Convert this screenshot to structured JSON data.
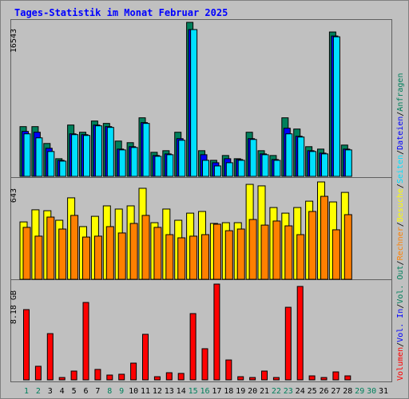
{
  "chart_data": {
    "type": "bar",
    "title": "Tages-Statistik im Monat Februar 2025",
    "categories": [
      1,
      2,
      3,
      4,
      5,
      6,
      7,
      8,
      9,
      10,
      11,
      12,
      13,
      14,
      15,
      16,
      17,
      18,
      19,
      20,
      21,
      22,
      23,
      24,
      25,
      26,
      27,
      28,
      29,
      30,
      31
    ],
    "category_colors": [
      "#00805c",
      "#00805c",
      "#000000",
      "#000000",
      "#000000",
      "#000000",
      "#000000",
      "#00805c",
      "#00805c",
      "#000000",
      "#000000",
      "#000000",
      "#000000",
      "#000000",
      "#00805c",
      "#00805c",
      "#000000",
      "#000000",
      "#000000",
      "#000000",
      "#000000",
      "#00805c",
      "#00805c",
      "#000000",
      "#000000",
      "#000000",
      "#000000",
      "#000000",
      "#00805c",
      "#00805c",
      "#000000"
    ],
    "legend_separator": "/",
    "panels": [
      {
        "ylim": [
          0,
          16543
        ],
        "yticks": [
          16543
        ],
        "series": [
          {
            "name": "Anfragen",
            "color": "#00805c",
            "values": [
              5342,
              5342,
              3533,
              1896,
              5514,
              4739,
              5945,
              5687,
              3791,
              3619,
              6290,
              2585,
              2757,
              4739,
              16543,
              2757,
              1723,
              2240,
              1896,
              4739,
              2757,
              2240,
              6290,
              5083,
              3188,
              2929,
              15509,
              3360,
              null,
              null,
              null
            ]
          },
          {
            "name": "Dateien",
            "color": "#0000ff",
            "values": [
              4825,
              4739,
              3016,
              1723,
              4566,
              4480,
              5514,
              5342,
              2929,
              3188,
              5773,
              2240,
              2412,
              4050,
              15767,
              2326,
              1465,
              1896,
              1809,
              4050,
              2412,
              1809,
              5170,
              4308,
              2757,
              2499,
              15078,
              2929,
              null,
              null,
              null
            ]
          },
          {
            "name": "Seiten",
            "color": "#00e0ff",
            "values": [
              4566,
              4136,
              2671,
              1637,
              4480,
              4394,
              5428,
              5256,
              2843,
              3102,
              5687,
              2154,
              2326,
              3877,
              15767,
              1723,
              1120,
              1465,
              1723,
              3963,
              2326,
              1723,
              4566,
              4222,
              2671,
              2412,
              14992,
              2843,
              null,
              null,
              null
            ]
          }
        ]
      },
      {
        "ylim": [
          0,
          643
        ],
        "yticks": [
          643
        ],
        "series": [
          {
            "name": "Besuche",
            "color": "#ffff00",
            "values": [
              379,
              459,
              453,
              390,
              538,
              348,
              416,
              485,
              464,
              485,
              601,
              374,
              464,
              390,
              437,
              448,
              369,
              374,
              374,
              627,
              617,
              474,
              437,
              474,
              516,
              643,
              511,
              574,
              null,
              null,
              null
            ]
          },
          {
            "name": "Rechner",
            "color": "#ff8000",
            "values": [
              343,
              285,
              411,
              332,
              422,
              279,
              285,
              348,
              306,
              369,
              422,
              343,
              295,
              274,
              285,
              295,
              364,
              321,
              332,
              395,
              358,
              385,
              353,
              295,
              448,
              548,
              327,
              427,
              null,
              null,
              null
            ]
          }
        ]
      },
      {
        "ylim": [
          0,
          8.18
        ],
        "yticks": [
          {
            "value": 8.18,
            "label": "8.18 GB"
          }
        ],
        "series": [
          {
            "name": "Vol. Out",
            "color": "#00805c",
            "values": [
              null,
              null,
              null,
              null,
              null,
              null,
              null,
              null,
              null,
              null,
              null,
              null,
              null,
              null,
              null,
              null,
              null,
              null,
              null,
              null,
              null,
              null,
              null,
              null,
              null,
              null,
              null,
              null,
              null,
              null,
              null
            ]
          },
          {
            "name": "Vol. In",
            "color": "#0000ff",
            "values": [
              null,
              null,
              null,
              null,
              null,
              null,
              null,
              null,
              null,
              null,
              null,
              null,
              null,
              null,
              null,
              null,
              null,
              null,
              null,
              null,
              null,
              null,
              null,
              null,
              null,
              null,
              null,
              null,
              null,
              null,
              null
            ]
          },
          {
            "name": "Volumen",
            "color": "#ff0000",
            "values": [
              6.0,
              1.16,
              3.95,
              0.2,
              0.75,
              6.61,
              0.89,
              0.41,
              0.48,
              1.43,
              3.89,
              0.27,
              0.61,
              0.55,
              5.66,
              2.66,
              8.18,
              1.7,
              0.27,
              0.2,
              0.75,
              0.2,
              6.2,
              7.98,
              0.34,
              0.2,
              0.68,
              0.34,
              null,
              null,
              null
            ]
          }
        ]
      }
    ]
  }
}
